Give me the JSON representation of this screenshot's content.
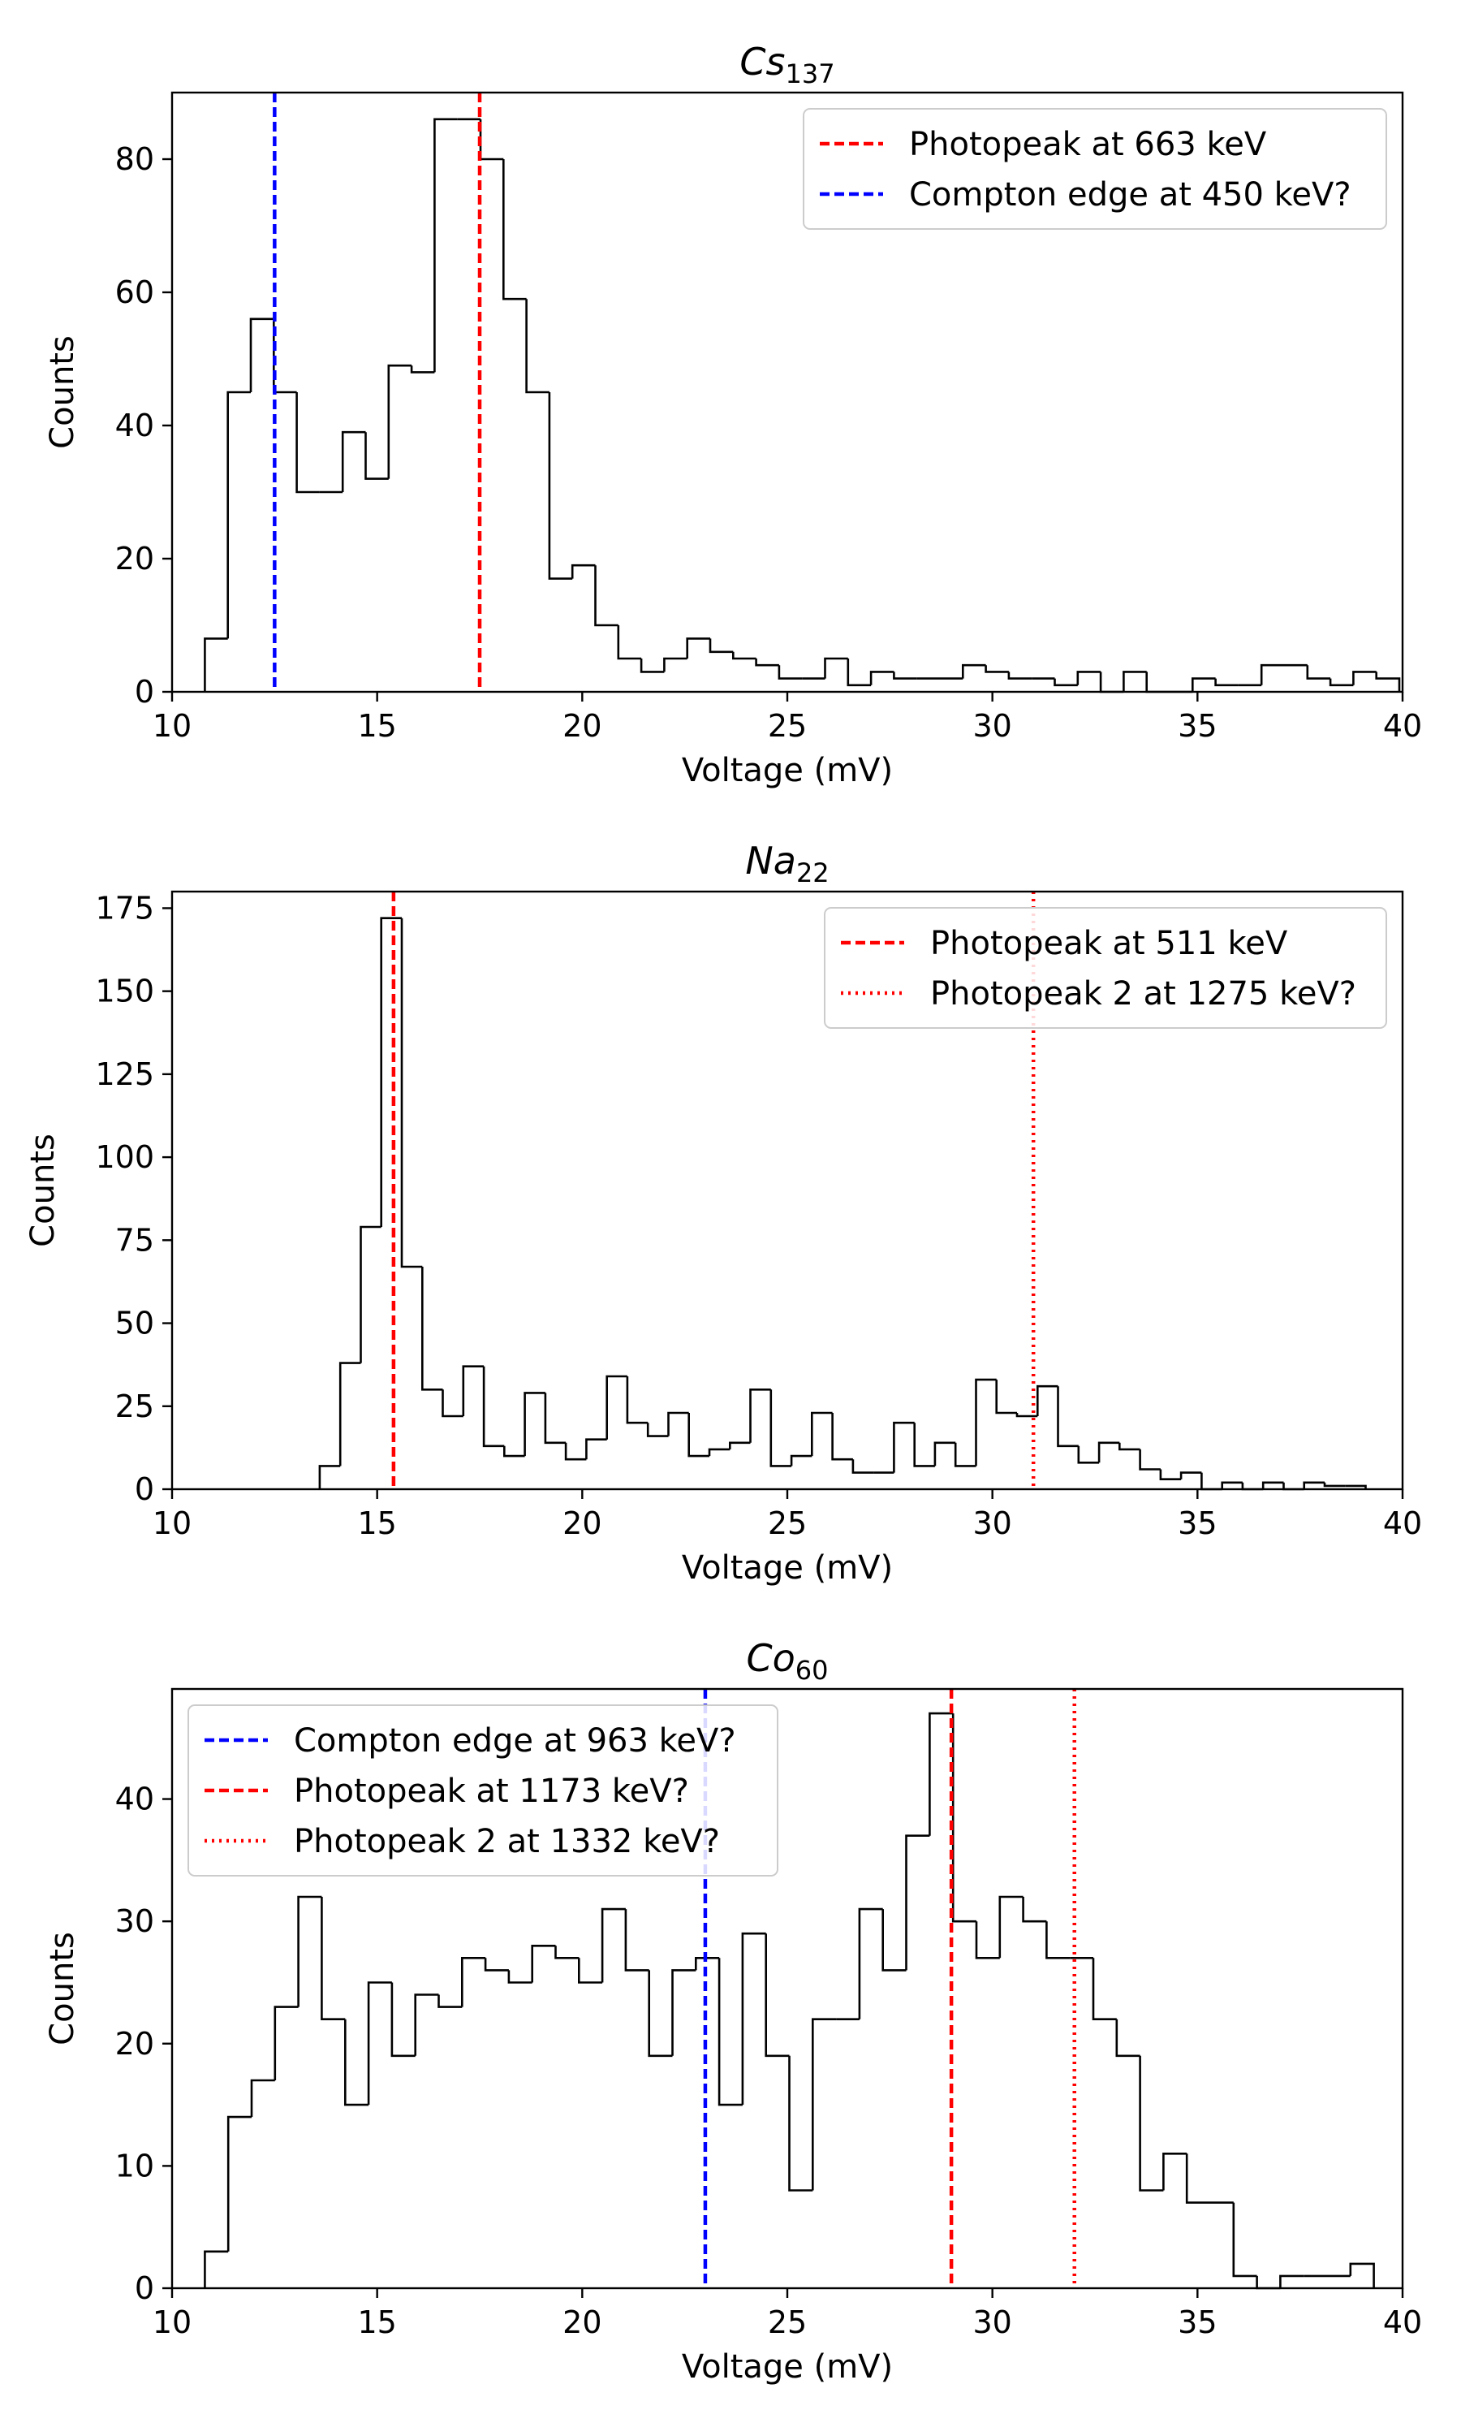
{
  "chart_data": [
    {
      "type": "histogram",
      "title": "Cs",
      "title_sub": "137",
      "xlabel": "Voltage (mV)",
      "ylabel": "Counts",
      "xlim": [
        10,
        40
      ],
      "ylim": [
        0,
        90
      ],
      "xticks": [
        "10",
        "15",
        "20",
        "25",
        "30",
        "35",
        "40"
      ],
      "yticks": [
        "0",
        "20",
        "40",
        "60",
        "80"
      ],
      "bin_start": 10.8,
      "bin_width": 0.56,
      "values": [
        8,
        45,
        56,
        45,
        30,
        30,
        39,
        32,
        49,
        48,
        86,
        86,
        80,
        59,
        45,
        17,
        19,
        10,
        5,
        3,
        5,
        8,
        6,
        5,
        4,
        2,
        2,
        5,
        1,
        3,
        2,
        2,
        2,
        4,
        3,
        2,
        2,
        1,
        3,
        0,
        3,
        0,
        0,
        2,
        1,
        1,
        4,
        4,
        2,
        1,
        3,
        2
      ],
      "grid": false,
      "legend_position": "upper-right",
      "vlines": [
        {
          "x": 17.5,
          "color": "#ff0000",
          "style": "dashed",
          "label": "Photopeak at 663 keV"
        },
        {
          "x": 12.5,
          "color": "#0000ff",
          "style": "dashed",
          "label": "Compton edge at 450 keV?"
        }
      ]
    },
    {
      "type": "histogram",
      "title": "Na",
      "title_sub": "22",
      "xlabel": "Voltage (mV)",
      "ylabel": "Counts",
      "xlim": [
        10,
        40
      ],
      "ylim": [
        0,
        180
      ],
      "xticks": [
        "10",
        "15",
        "20",
        "25",
        "30",
        "35",
        "40"
      ],
      "yticks": [
        "0",
        "25",
        "50",
        "75",
        "100",
        "125",
        "150",
        "175"
      ],
      "bin_start": 13.6,
      "bin_width": 0.5,
      "values": [
        7,
        38,
        79,
        172,
        67,
        30,
        22,
        37,
        13,
        10,
        29,
        14,
        9,
        15,
        34,
        20,
        16,
        23,
        10,
        12,
        14,
        30,
        7,
        10,
        23,
        9,
        5,
        5,
        20,
        7,
        14,
        7,
        33,
        23,
        22,
        31,
        13,
        8,
        14,
        12,
        6,
        3,
        5,
        0,
        2,
        0,
        2,
        0,
        2,
        1,
        1
      ],
      "grid": false,
      "legend_position": "upper-right",
      "vlines": [
        {
          "x": 15.4,
          "color": "#ff0000",
          "style": "dashed",
          "label": "Photopeak at 511 keV"
        },
        {
          "x": 31.0,
          "color": "#ff0000",
          "style": "dotted",
          "label": "Photopeak 2 at 1275 keV?"
        }
      ]
    },
    {
      "type": "histogram",
      "title": "Co",
      "title_sub": "60",
      "xlabel": "Voltage (mV)",
      "ylabel": "Counts",
      "xlim": [
        10,
        40
      ],
      "ylim": [
        0,
        49
      ],
      "xticks": [
        "10",
        "15",
        "20",
        "25",
        "30",
        "35",
        "40"
      ],
      "yticks": [
        "0",
        "10",
        "20",
        "30",
        "40"
      ],
      "bin_start": 10.8,
      "bin_width": 0.57,
      "values": [
        3,
        14,
        17,
        23,
        32,
        22,
        15,
        25,
        19,
        24,
        23,
        27,
        26,
        25,
        28,
        27,
        25,
        31,
        26,
        19,
        26,
        27,
        15,
        29,
        19,
        8,
        22,
        22,
        31,
        26,
        37,
        47,
        30,
        27,
        32,
        30,
        27,
        27,
        22,
        19,
        8,
        11,
        7,
        7,
        1,
        0,
        1,
        1,
        1,
        2
      ],
      "grid": false,
      "legend_position": "upper-left",
      "vlines": [
        {
          "x": 23.0,
          "color": "#0000ff",
          "style": "dashed",
          "label": "Compton edge at 963 keV?"
        },
        {
          "x": 29.0,
          "color": "#ff0000",
          "style": "dashed",
          "label": "Photopeak at 1173 keV?"
        },
        {
          "x": 32.0,
          "color": "#ff0000",
          "style": "dotted",
          "label": "Photopeak 2 at 1332 keV?"
        }
      ]
    }
  ]
}
